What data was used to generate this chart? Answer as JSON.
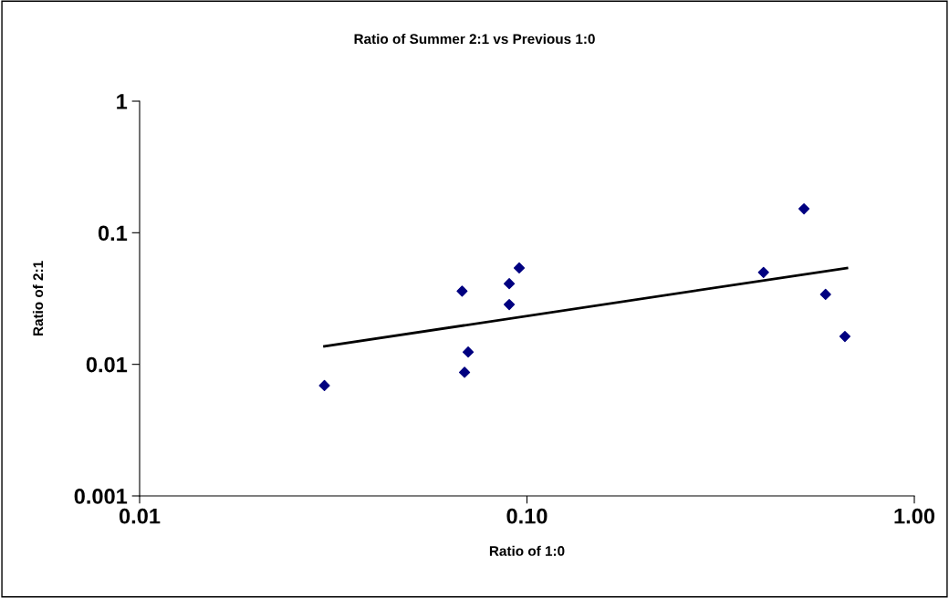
{
  "chart_data": {
    "type": "scatter",
    "title": "Ratio of Summer 2:1 vs Previous 1:0",
    "xlabel": "Ratio of 1:0",
    "ylabel": "Ratio of 2:1",
    "log": "xy",
    "grid": false,
    "legend": false,
    "marker": "diamond",
    "xlim": [
      0.01,
      1
    ],
    "ylim": [
      0.001,
      1
    ],
    "xticks": [
      {
        "value": 0.01,
        "label": "0.01"
      },
      {
        "value": 0.1,
        "label": "0.10"
      },
      {
        "value": 1,
        "label": "1.00"
      }
    ],
    "yticks": [
      0.001,
      0.01,
      0.1,
      1
    ],
    "series": [
      {
        "color": "#000080",
        "x": [
          0.03,
          0.068,
          0.069,
          0.0705,
          0.09,
          0.09,
          0.0955,
          0.408,
          0.519,
          0.59,
          0.662
        ],
        "values": [
          0.0069,
          0.036,
          0.0087,
          0.0124,
          0.041,
          0.0285,
          0.054,
          0.05,
          0.152,
          0.034,
          0.0163
        ]
      },
      {
        "type": "line",
        "color": "#000000",
        "marker": "none",
        "x": [
          0.03,
          0.67
        ],
        "values": [
          0.0137,
          0.054
        ]
      }
    ]
  }
}
